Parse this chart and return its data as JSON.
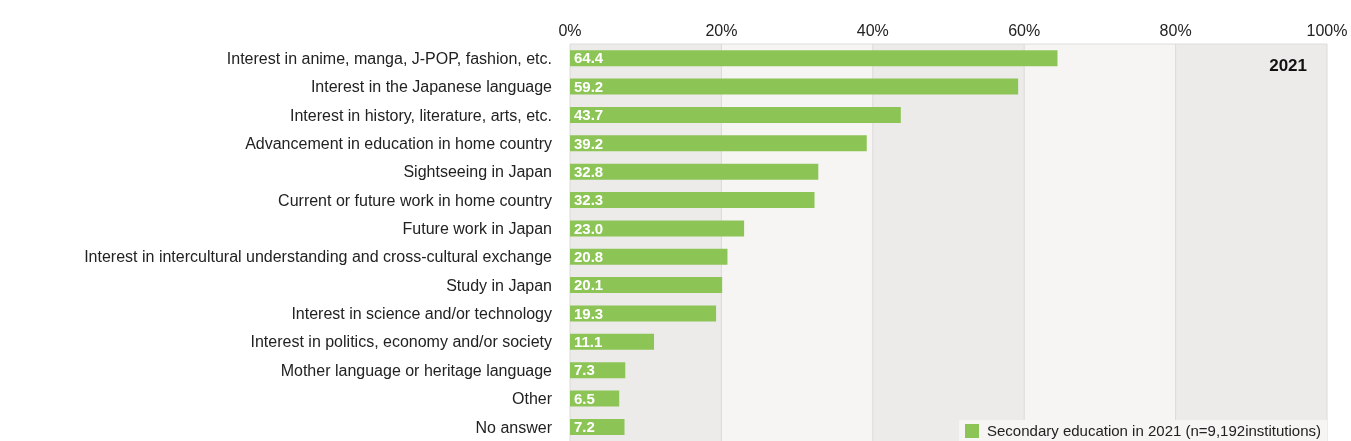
{
  "chart_data": {
    "type": "bar",
    "orientation": "horizontal",
    "categories": [
      "Interest in anime, manga, J-POP, fashion, etc.",
      "Interest in the Japanese language",
      "Interest in history, literature, arts, etc.",
      "Advancement in education in home country",
      "Sightseeing in Japan",
      "Current or future work in home country",
      "Future work in Japan",
      "Interest in intercultural understanding and cross-cultural exchange",
      "Study in Japan",
      "Interest in science and/or technology",
      "Interest in politics, economy and/or society",
      "Mother language or heritage language",
      "Other",
      "No answer"
    ],
    "series": [
      {
        "name": "Secondary education in 2021 (n=9,192institutions)",
        "color": "#8cc556",
        "values": [
          64.4,
          59.2,
          43.7,
          39.2,
          32.8,
          32.3,
          23.0,
          20.8,
          20.1,
          19.3,
          11.1,
          7.3,
          6.5,
          7.2
        ],
        "value_labels": [
          "64.4",
          "59.2",
          "43.7",
          "39.2",
          "32.8",
          "32.3",
          "23.0",
          "20.8",
          "20.1",
          "19.3",
          "11.1",
          "7.3",
          "6.5",
          "7.2"
        ]
      }
    ],
    "xlim": [
      0,
      100
    ],
    "xticks": [
      {
        "value": 0,
        "label": "0%"
      },
      {
        "value": 20,
        "label": "20%"
      },
      {
        "value": 40,
        "label": "40%"
      },
      {
        "value": 60,
        "label": "60%"
      },
      {
        "value": 80,
        "label": "80%"
      },
      {
        "value": 100,
        "label": "100%"
      }
    ],
    "annotations": [
      "2021"
    ],
    "grid": "x",
    "legend": "bottom right"
  }
}
